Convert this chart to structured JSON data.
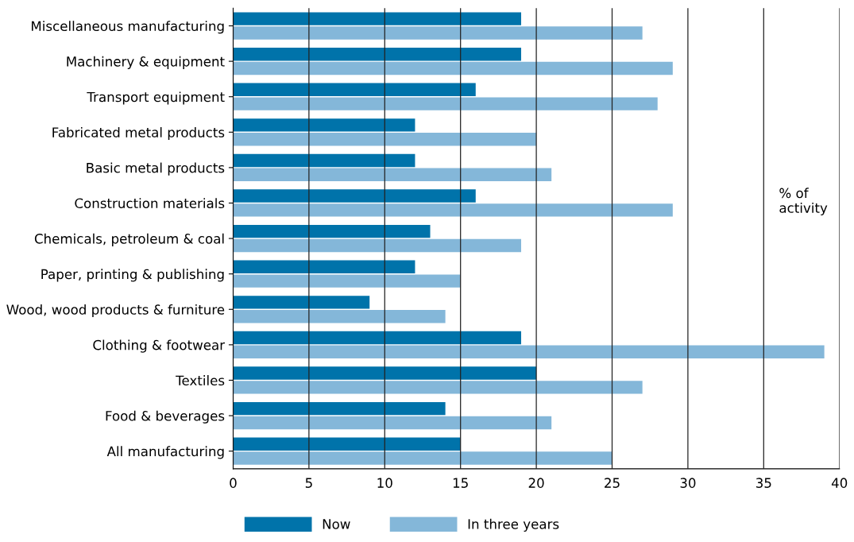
{
  "chart_data": {
    "type": "bar",
    "orientation": "horizontal",
    "categories": [
      "Miscellaneous manufacturing",
      "Machinery & equipment",
      "Transport equipment",
      "Fabricated metal products",
      "Basic metal products",
      "Construction materials",
      "Chemicals, petroleum & coal",
      "Paper, printing & publishing",
      "Wood, wood products & furniture",
      "Clothing & footwear",
      "Textiles",
      "Food & beverages",
      "All manufacturing"
    ],
    "series": [
      {
        "name": "Now",
        "color": "#0073aa",
        "values": [
          19,
          19,
          16,
          12,
          12,
          16,
          13,
          12,
          9,
          19,
          20,
          14,
          15
        ]
      },
      {
        "name": "In three years",
        "color": "#84b7d9",
        "values": [
          27,
          29,
          28,
          20,
          21,
          29,
          19,
          15,
          14,
          39,
          27,
          21,
          25
        ]
      }
    ],
    "xlim": [
      0,
      40
    ],
    "xticks": [
      0,
      5,
      10,
      15,
      20,
      25,
      30,
      35,
      40
    ],
    "grid": "x",
    "legend": "bottom",
    "annotations": [
      "% of\nactivity"
    ]
  }
}
